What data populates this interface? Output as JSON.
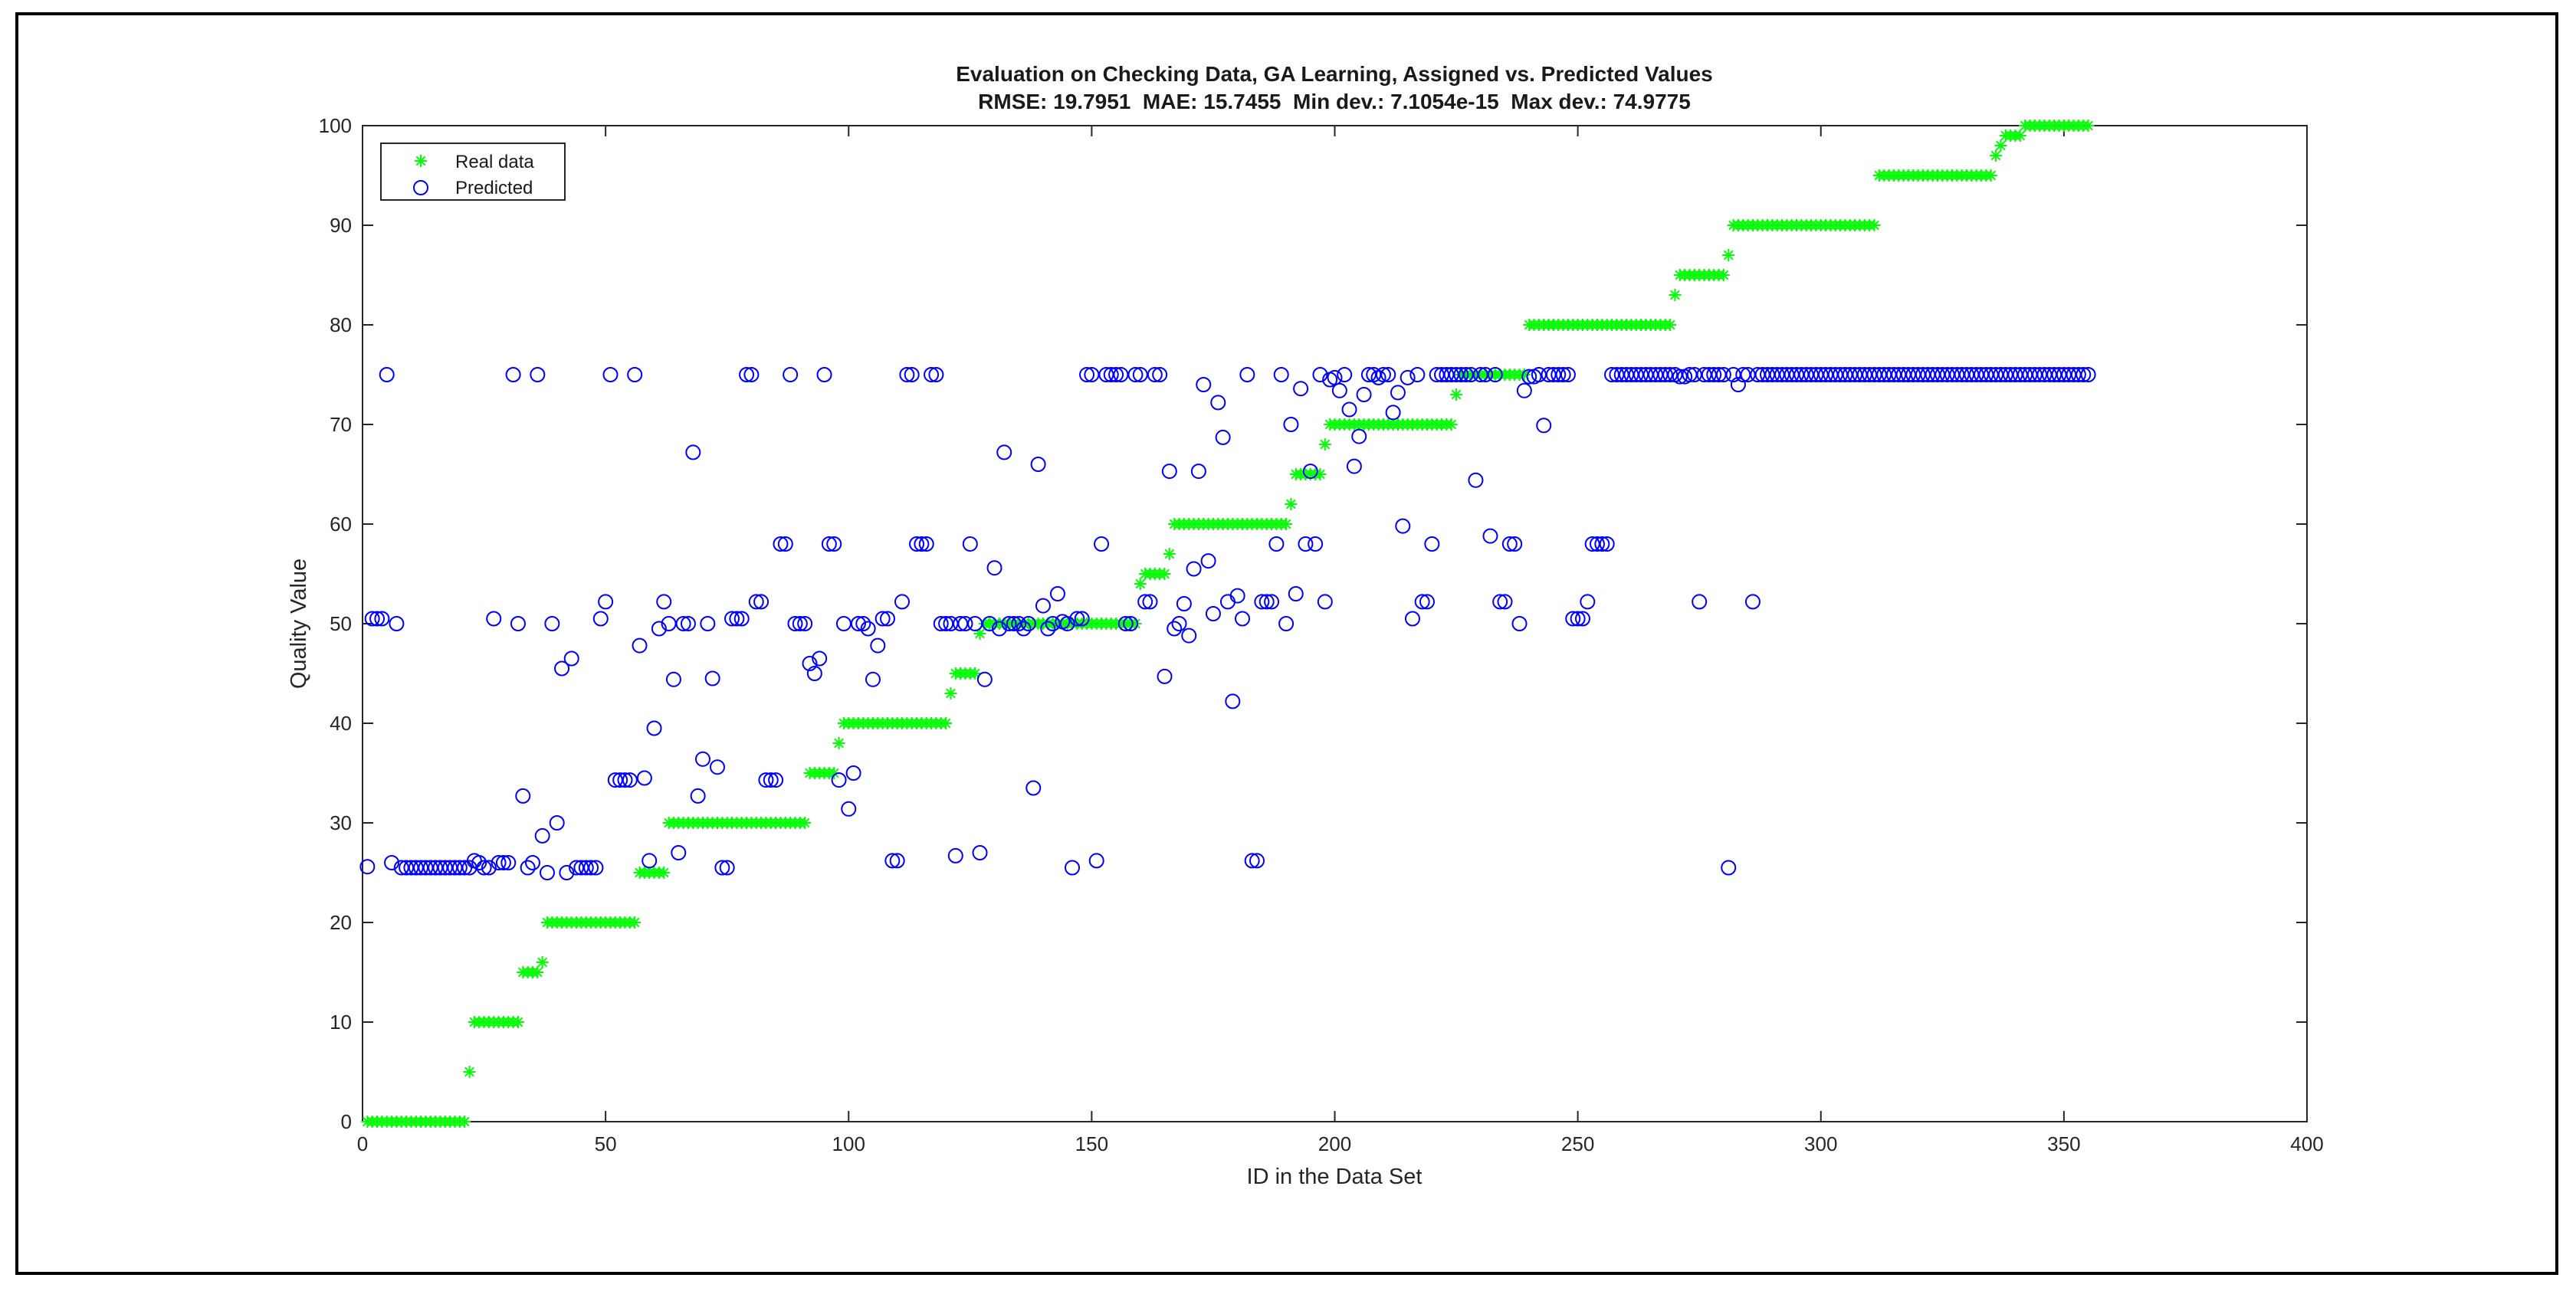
{
  "chart_data": {
    "type": "scatter",
    "title": "Evaluation on Checking Data, GA Learning, Assigned vs. Predicted Values",
    "subtitle": "RMSE: 19.7951  MAE: 15.7455  Min dev.: 7.1054e-15  Max dev.: 74.9775",
    "xlabel": "ID in the Data Set",
    "ylabel": "Quality Value",
    "xlim": [
      0,
      400
    ],
    "ylim": [
      0,
      100
    ],
    "xticks": [
      0,
      50,
      100,
      150,
      200,
      250,
      300,
      350,
      400
    ],
    "yticks": [
      0,
      10,
      20,
      30,
      40,
      50,
      60,
      70,
      80,
      90,
      100
    ],
    "grid": false,
    "legend_position": "top-left",
    "real_segments": [
      {
        "from": 1,
        "to": 21,
        "value": 0
      },
      {
        "from": 22,
        "to": 22,
        "value": 5
      },
      {
        "from": 23,
        "to": 32,
        "value": 10
      },
      {
        "from": 33,
        "to": 36,
        "value": 15
      },
      {
        "from": 37,
        "to": 37,
        "value": 16
      },
      {
        "from": 38,
        "to": 56,
        "value": 20
      },
      {
        "from": 57,
        "to": 62,
        "value": 25
      },
      {
        "from": 63,
        "to": 91,
        "value": 30
      },
      {
        "from": 92,
        "to": 97,
        "value": 35
      },
      {
        "from": 98,
        "to": 98,
        "value": 38
      },
      {
        "from": 99,
        "to": 120,
        "value": 40
      },
      {
        "from": 121,
        "to": 121,
        "value": 43
      },
      {
        "from": 122,
        "to": 126,
        "value": 45
      },
      {
        "from": 127,
        "to": 127,
        "value": 49
      },
      {
        "from": 128,
        "to": 159,
        "value": 50
      },
      {
        "from": 160,
        "to": 160,
        "value": 54
      },
      {
        "from": 161,
        "to": 165,
        "value": 55
      },
      {
        "from": 166,
        "to": 166,
        "value": 57
      },
      {
        "from": 167,
        "to": 190,
        "value": 60
      },
      {
        "from": 191,
        "to": 191,
        "value": 62
      },
      {
        "from": 192,
        "to": 197,
        "value": 65
      },
      {
        "from": 198,
        "to": 198,
        "value": 68
      },
      {
        "from": 199,
        "to": 224,
        "value": 70
      },
      {
        "from": 225,
        "to": 225,
        "value": 73
      },
      {
        "from": 226,
        "to": 239,
        "value": 75
      },
      {
        "from": 240,
        "to": 269,
        "value": 80
      },
      {
        "from": 270,
        "to": 270,
        "value": 83
      },
      {
        "from": 271,
        "to": 280,
        "value": 85
      },
      {
        "from": 281,
        "to": 281,
        "value": 87
      },
      {
        "from": 282,
        "to": 311,
        "value": 90
      },
      {
        "from": 312,
        "to": 335,
        "value": 95
      },
      {
        "from": 336,
        "to": 336,
        "value": 97
      },
      {
        "from": 337,
        "to": 337,
        "value": 98
      },
      {
        "from": 338,
        "to": 341,
        "value": 99
      },
      {
        "from": 342,
        "to": 355,
        "value": 100
      }
    ],
    "predicted": [
      [
        1,
        25.6
      ],
      [
        2,
        50.5
      ],
      [
        3,
        50.5
      ],
      [
        4,
        50.5
      ],
      [
        5,
        75
      ],
      [
        6,
        26
      ],
      [
        7,
        50
      ],
      [
        8,
        25.5
      ],
      [
        9,
        25.5
      ],
      [
        10,
        25.5
      ],
      [
        11,
        25.5
      ],
      [
        12,
        25.5
      ],
      [
        13,
        25.5
      ],
      [
        14,
        25.5
      ],
      [
        15,
        25.5
      ],
      [
        16,
        25.5
      ],
      [
        17,
        25.5
      ],
      [
        18,
        25.5
      ],
      [
        19,
        25.5
      ],
      [
        20,
        25.5
      ],
      [
        21,
        25.5
      ],
      [
        22,
        25.5
      ],
      [
        23,
        26.2
      ],
      [
        24,
        26
      ],
      [
        25,
        25.5
      ],
      [
        26,
        25.5
      ],
      [
        27,
        50.5
      ],
      [
        28,
        26
      ],
      [
        29,
        26
      ],
      [
        30,
        26
      ],
      [
        31,
        75
      ],
      [
        32,
        50
      ],
      [
        33,
        32.7
      ],
      [
        34,
        25.5
      ],
      [
        35,
        26
      ],
      [
        36,
        75
      ],
      [
        37,
        28.7
      ],
      [
        38,
        25
      ],
      [
        39,
        50
      ],
      [
        40,
        30
      ],
      [
        41,
        45.5
      ],
      [
        42,
        25
      ],
      [
        43,
        46.5
      ],
      [
        44,
        25.5
      ],
      [
        45,
        25.5
      ],
      [
        46,
        25.5
      ],
      [
        47,
        25.5
      ],
      [
        48,
        25.5
      ],
      [
        49,
        50.5
      ],
      [
        50,
        52.2
      ],
      [
        51,
        75
      ],
      [
        52,
        34.3
      ],
      [
        53,
        34.3
      ],
      [
        54,
        34.3
      ],
      [
        55,
        34.3
      ],
      [
        56,
        75
      ],
      [
        57,
        47.8
      ],
      [
        58,
        34.5
      ],
      [
        59,
        26.2
      ],
      [
        60,
        39.5
      ],
      [
        61,
        49.5
      ],
      [
        62,
        52.2
      ],
      [
        63,
        50
      ],
      [
        64,
        44.4
      ],
      [
        65,
        27
      ],
      [
        66,
        50
      ],
      [
        67,
        50
      ],
      [
        68,
        67.2
      ],
      [
        69,
        32.7
      ],
      [
        70,
        36.4
      ],
      [
        71,
        50
      ],
      [
        72,
        44.5
      ],
      [
        73,
        35.6
      ],
      [
        74,
        25.5
      ],
      [
        75,
        25.5
      ],
      [
        76,
        50.5
      ],
      [
        77,
        50.5
      ],
      [
        78,
        50.5
      ],
      [
        79,
        75
      ],
      [
        80,
        75
      ],
      [
        81,
        52.2
      ],
      [
        82,
        52.2
      ],
      [
        83,
        34.3
      ],
      [
        84,
        34.3
      ],
      [
        85,
        34.3
      ],
      [
        86,
        58
      ],
      [
        87,
        58
      ],
      [
        88,
        75
      ],
      [
        89,
        50
      ],
      [
        90,
        50
      ],
      [
        91,
        50
      ],
      [
        92,
        46
      ],
      [
        93,
        45
      ],
      [
        94,
        46.5
      ],
      [
        95,
        75
      ],
      [
        96,
        58
      ],
      [
        97,
        58
      ],
      [
        98,
        34.3
      ],
      [
        99,
        50
      ],
      [
        100,
        31.4
      ],
      [
        101,
        35
      ],
      [
        102,
        50
      ],
      [
        103,
        50
      ],
      [
        104,
        49.5
      ],
      [
        105,
        44.4
      ],
      [
        106,
        47.8
      ],
      [
        107,
        50.5
      ],
      [
        108,
        50.5
      ],
      [
        109,
        26.2
      ],
      [
        110,
        26.2
      ],
      [
        111,
        52.2
      ],
      [
        112,
        75
      ],
      [
        113,
        75
      ],
      [
        114,
        58
      ],
      [
        115,
        58
      ],
      [
        116,
        58
      ],
      [
        117,
        75
      ],
      [
        118,
        75
      ],
      [
        119,
        50
      ],
      [
        120,
        50
      ],
      [
        121,
        50
      ],
      [
        122,
        26.7
      ],
      [
        123,
        50
      ],
      [
        124,
        50
      ],
      [
        125,
        58
      ],
      [
        126,
        50
      ],
      [
        127,
        27
      ],
      [
        128,
        44.4
      ],
      [
        129,
        50
      ],
      [
        130,
        55.6
      ],
      [
        131,
        49.5
      ],
      [
        132,
        67.2
      ],
      [
        133,
        50
      ],
      [
        134,
        50
      ],
      [
        135,
        50
      ],
      [
        136,
        49.5
      ],
      [
        137,
        50
      ],
      [
        138,
        33.5
      ],
      [
        139,
        66
      ],
      [
        140,
        51.8
      ],
      [
        141,
        49.5
      ],
      [
        142,
        50
      ],
      [
        143,
        53
      ],
      [
        144,
        50.2
      ],
      [
        145,
        50
      ],
      [
        146,
        25.5
      ],
      [
        147,
        50.5
      ],
      [
        148,
        50.5
      ],
      [
        149,
        75
      ],
      [
        150,
        75
      ],
      [
        151,
        26.2
      ],
      [
        152,
        58
      ],
      [
        153,
        75
      ],
      [
        154,
        75
      ],
      [
        155,
        75
      ],
      [
        156,
        75
      ],
      [
        157,
        50
      ],
      [
        158,
        50
      ],
      [
        159,
        75
      ],
      [
        160,
        75
      ],
      [
        161,
        52.2
      ],
      [
        162,
        52.2
      ],
      [
        163,
        75
      ],
      [
        164,
        75
      ],
      [
        165,
        44.7
      ],
      [
        166,
        65.3
      ],
      [
        167,
        49.5
      ],
      [
        168,
        50
      ],
      [
        169,
        52
      ],
      [
        170,
        48.8
      ],
      [
        171,
        55.5
      ],
      [
        172,
        65.3
      ],
      [
        173,
        74
      ],
      [
        174,
        56.3
      ],
      [
        175,
        51
      ],
      [
        176,
        72.2
      ],
      [
        177,
        68.7
      ],
      [
        178,
        52.2
      ],
      [
        179,
        42.2
      ],
      [
        180,
        52.8
      ],
      [
        181,
        50.5
      ],
      [
        182,
        75
      ],
      [
        183,
        26.2
      ],
      [
        184,
        26.2
      ],
      [
        185,
        52.2
      ],
      [
        186,
        52.2
      ],
      [
        187,
        52.2
      ],
      [
        188,
        58
      ],
      [
        189,
        75
      ],
      [
        190,
        50
      ],
      [
        191,
        70
      ],
      [
        192,
        53
      ],
      [
        193,
        73.6
      ],
      [
        194,
        58
      ],
      [
        195,
        65.3
      ],
      [
        196,
        58
      ],
      [
        197,
        75
      ],
      [
        198,
        52.2
      ],
      [
        199,
        74.5
      ],
      [
        200,
        74.7
      ],
      [
        201,
        73.4
      ],
      [
        202,
        75
      ],
      [
        203,
        71.5
      ],
      [
        204,
        65.8
      ],
      [
        205,
        68.8
      ],
      [
        206,
        73
      ],
      [
        207,
        75
      ],
      [
        208,
        75
      ],
      [
        209,
        74.7
      ],
      [
        210,
        75
      ],
      [
        211,
        75
      ],
      [
        212,
        71.2
      ],
      [
        213,
        73.2
      ],
      [
        214,
        59.8
      ],
      [
        215,
        74.7
      ],
      [
        216,
        50.5
      ],
      [
        217,
        75
      ],
      [
        218,
        52.2
      ],
      [
        219,
        52.2
      ],
      [
        220,
        58
      ],
      [
        221,
        75
      ],
      [
        222,
        75
      ],
      [
        223,
        75
      ],
      [
        224,
        75
      ],
      [
        225,
        75
      ],
      [
        226,
        75
      ],
      [
        227,
        75
      ],
      [
        228,
        75
      ],
      [
        229,
        64.4
      ],
      [
        230,
        75
      ],
      [
        231,
        75
      ],
      [
        232,
        58.8
      ],
      [
        233,
        75
      ],
      [
        234,
        52.2
      ],
      [
        235,
        52.2
      ],
      [
        236,
        58
      ],
      [
        237,
        58
      ],
      [
        238,
        50
      ],
      [
        239,
        73.4
      ],
      [
        240,
        74.8
      ],
      [
        241,
        74.8
      ],
      [
        242,
        75
      ],
      [
        243,
        69.9
      ],
      [
        244,
        75
      ],
      [
        245,
        75
      ],
      [
        246,
        75
      ],
      [
        247,
        75
      ],
      [
        248,
        75
      ],
      [
        249,
        50.5
      ],
      [
        250,
        50.5
      ],
      [
        251,
        50.5
      ],
      [
        252,
        52.2
      ],
      [
        253,
        58
      ],
      [
        254,
        58
      ],
      [
        255,
        58
      ],
      [
        256,
        58
      ],
      [
        257,
        75
      ],
      [
        258,
        75
      ],
      [
        259,
        75
      ],
      [
        260,
        75
      ],
      [
        261,
        75
      ],
      [
        262,
        75
      ],
      [
        263,
        75
      ],
      [
        264,
        75
      ],
      [
        265,
        75
      ],
      [
        266,
        75
      ],
      [
        267,
        75
      ],
      [
        268,
        75
      ],
      [
        269,
        75
      ],
      [
        270,
        75
      ],
      [
        271,
        74.8
      ],
      [
        272,
        74.8
      ],
      [
        273,
        75
      ],
      [
        274,
        75
      ],
      [
        275,
        52.2
      ],
      [
        276,
        75
      ],
      [
        277,
        75
      ],
      [
        278,
        75
      ],
      [
        279,
        75
      ],
      [
        280,
        75
      ],
      [
        281,
        25.5
      ],
      [
        282,
        75
      ],
      [
        283,
        74
      ],
      [
        284,
        75
      ],
      [
        285,
        75
      ],
      [
        286,
        52.2
      ],
      [
        287,
        75
      ],
      [
        288,
        75
      ],
      [
        289,
        75
      ],
      [
        290,
        75
      ],
      [
        291,
        75
      ],
      [
        292,
        75
      ],
      [
        293,
        75
      ],
      [
        294,
        75
      ],
      [
        295,
        75
      ],
      [
        296,
        75
      ],
      [
        297,
        75
      ],
      [
        298,
        75
      ],
      [
        299,
        75
      ],
      [
        300,
        75
      ],
      [
        301,
        75
      ],
      [
        302,
        75
      ],
      [
        303,
        75
      ],
      [
        304,
        75
      ],
      [
        305,
        75
      ],
      [
        306,
        75
      ],
      [
        307,
        75
      ],
      [
        308,
        75
      ],
      [
        309,
        75
      ],
      [
        310,
        75
      ],
      [
        311,
        75
      ],
      [
        312,
        75
      ],
      [
        313,
        75
      ],
      [
        314,
        75
      ],
      [
        315,
        75
      ],
      [
        316,
        75
      ],
      [
        317,
        75
      ],
      [
        318,
        75
      ],
      [
        319,
        75
      ],
      [
        320,
        75
      ],
      [
        321,
        75
      ],
      [
        322,
        75
      ],
      [
        323,
        75
      ],
      [
        324,
        75
      ],
      [
        325,
        75
      ],
      [
        326,
        75
      ],
      [
        327,
        75
      ],
      [
        328,
        75
      ],
      [
        329,
        75
      ],
      [
        330,
        75
      ],
      [
        331,
        75
      ],
      [
        332,
        75
      ],
      [
        333,
        75
      ],
      [
        334,
        75
      ],
      [
        335,
        75
      ],
      [
        336,
        75
      ],
      [
        337,
        75
      ],
      [
        338,
        75
      ],
      [
        339,
        75
      ],
      [
        340,
        75
      ],
      [
        341,
        75
      ],
      [
        342,
        75
      ],
      [
        343,
        75
      ],
      [
        344,
        75
      ],
      [
        345,
        75
      ],
      [
        346,
        75
      ],
      [
        347,
        75
      ],
      [
        348,
        75
      ],
      [
        349,
        75
      ],
      [
        350,
        75
      ],
      [
        351,
        75
      ],
      [
        352,
        75
      ],
      [
        353,
        75
      ],
      [
        354,
        75
      ],
      [
        355,
        75
      ]
    ],
    "series": [
      {
        "name": "Real data",
        "marker": "*",
        "color": "#00ff00"
      },
      {
        "name": "Predicted",
        "marker": "o",
        "color": "#0000ff"
      }
    ]
  }
}
